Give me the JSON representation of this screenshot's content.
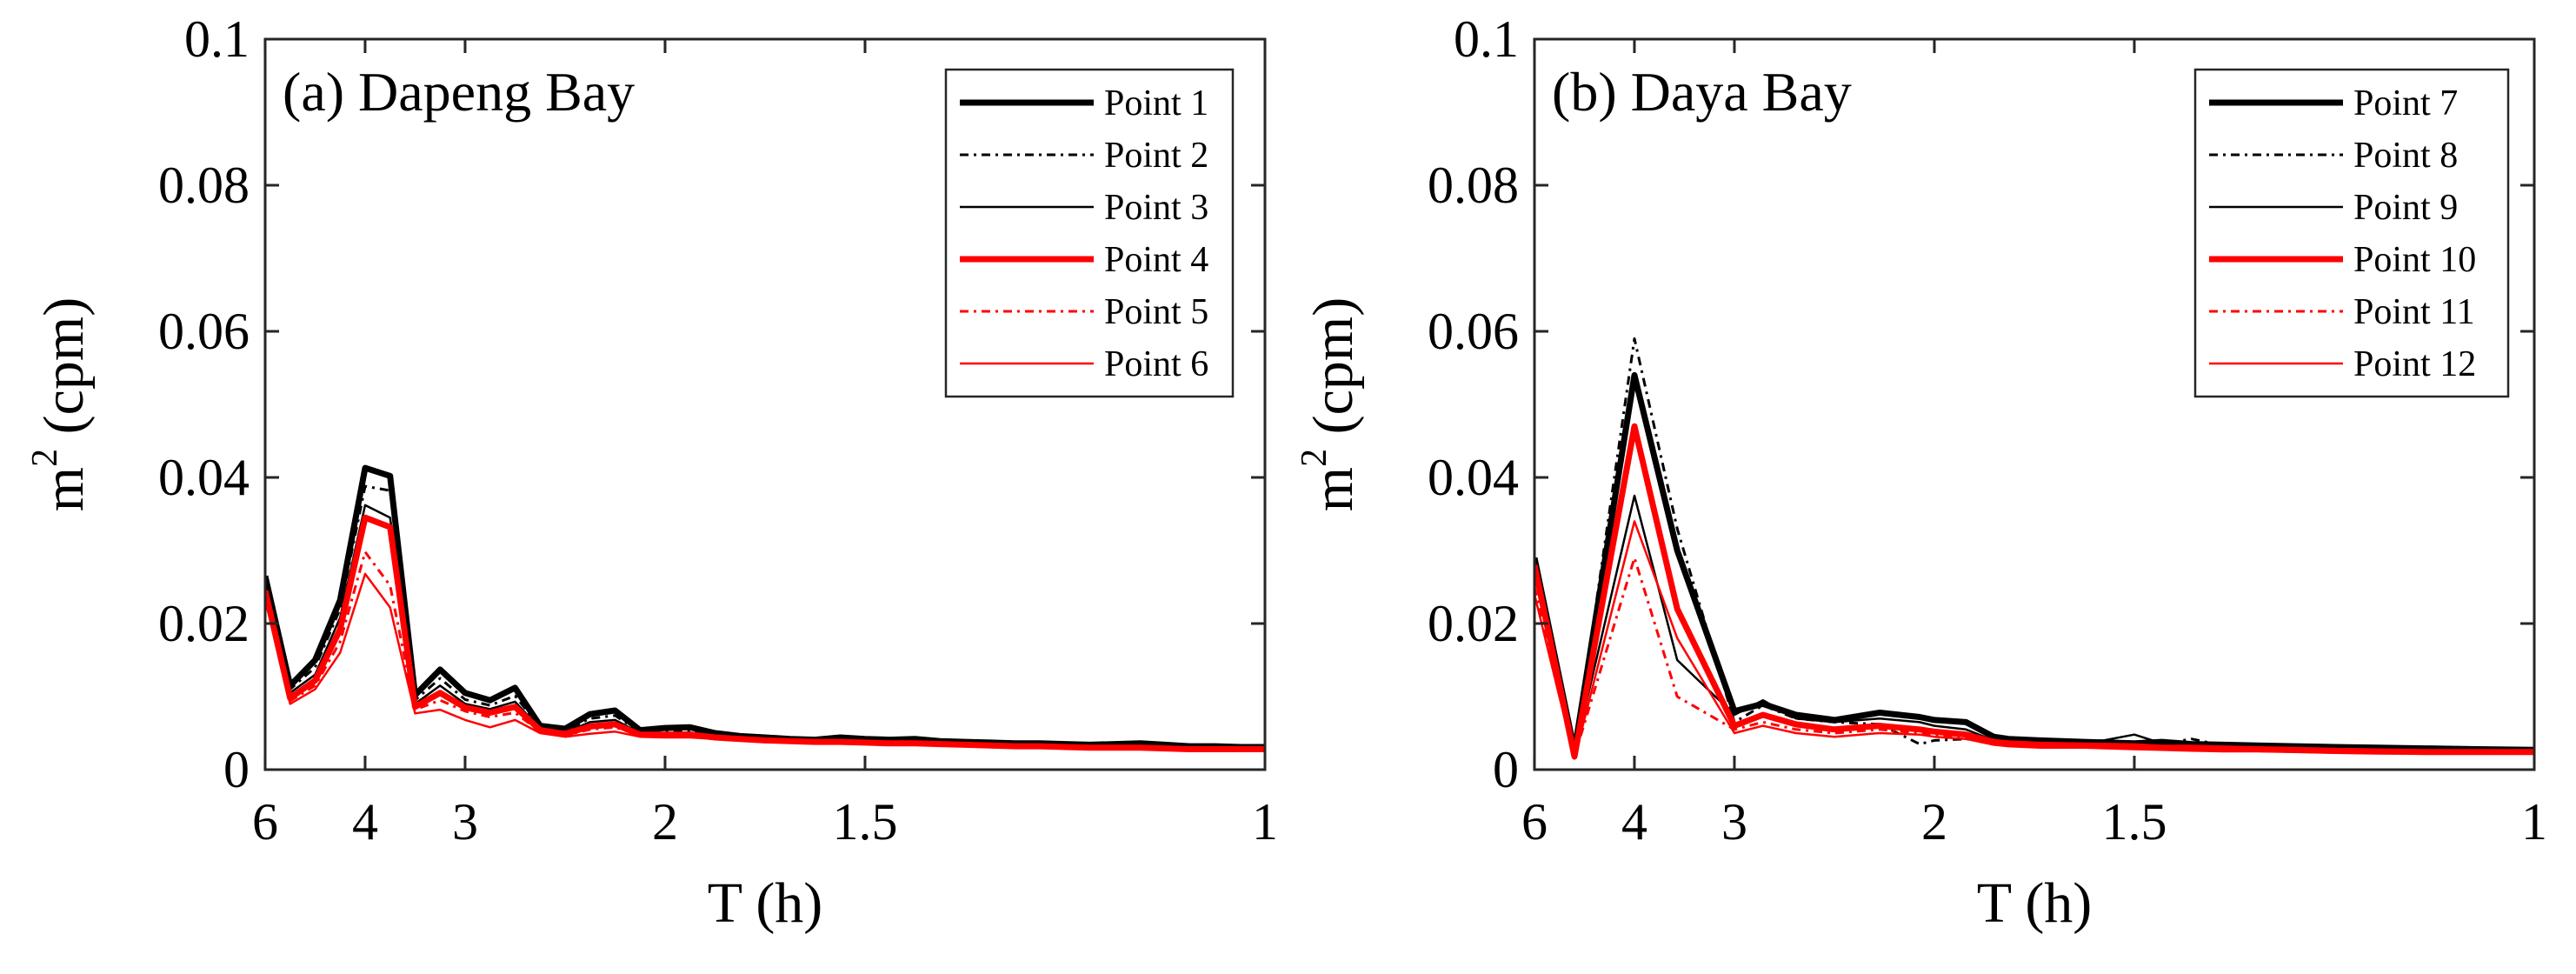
{
  "colors": {
    "black": "#000000",
    "red": "#ff0000",
    "frame": "#262626"
  },
  "chart_data": [
    {
      "type": "line",
      "title": "(a) Dapeng Bay",
      "xlabel": "T (h)",
      "ylabel_base": "m",
      "ylabel_sup": "2",
      "ylabel_unit": " (cpm)",
      "xlim_cph": [
        0.1667,
        1.0
      ],
      "ylim": [
        0,
        0.1
      ],
      "yticks": [
        0,
        0.02,
        0.04,
        0.06,
        0.08,
        0.1
      ],
      "ytick_labels": [
        "0",
        "0.02",
        "0.04",
        "0.06",
        "0.08",
        "0.1"
      ],
      "xticks_period_h": [
        6,
        4,
        3,
        2,
        1.5,
        1
      ],
      "xtick_labels": [
        "6",
        "4",
        "3",
        "2",
        "1.5",
        "1"
      ],
      "legend": "top-right",
      "x_period_h": [
        6,
        5.333,
        4.8,
        4.364,
        4.0,
        3.692,
        3.429,
        3.2,
        3.0,
        2.824,
        2.667,
        2.526,
        2.4,
        2.286,
        2.182,
        2.087,
        2.0,
        1.92,
        1.846,
        1.778,
        1.714,
        1.655,
        1.6,
        1.548,
        1.5,
        1.455,
        1.412,
        1.371,
        1.333,
        1.297,
        1.263,
        1.231,
        1.2,
        1.171,
        1.143,
        1.116,
        1.091,
        1.067,
        1.043,
        1.021,
        1.0
      ],
      "series": [
        {
          "name": "Point 1",
          "color": "#000000",
          "width": 7,
          "dash": "",
          "values": [
            0.0265,
            0.0115,
            0.015,
            0.0232,
            0.0413,
            0.0402,
            0.0102,
            0.0137,
            0.0105,
            0.0095,
            0.0112,
            0.006,
            0.0056,
            0.0076,
            0.0081,
            0.0054,
            0.0057,
            0.0058,
            0.005,
            0.0046,
            0.0044,
            0.0042,
            0.0041,
            0.0044,
            0.0042,
            0.0041,
            0.0042,
            0.0039,
            0.0038,
            0.0037,
            0.0036,
            0.0036,
            0.0035,
            0.0034,
            0.0035,
            0.0036,
            0.0034,
            0.0032,
            0.0032,
            0.0031,
            0.0031
          ]
        },
        {
          "name": "Point 2",
          "color": "#000000",
          "width": 3,
          "dash": "10,6,3,6",
          "values": [
            0.0258,
            0.011,
            0.014,
            0.022,
            0.0388,
            0.0382,
            0.0095,
            0.0125,
            0.0096,
            0.0088,
            0.0101,
            0.0058,
            0.0053,
            0.007,
            0.0074,
            0.0052,
            0.0053,
            0.0054,
            0.0048,
            0.0044,
            0.0042,
            0.0041,
            0.004,
            0.0041,
            0.004,
            0.0039,
            0.0039,
            0.0037,
            0.0036,
            0.0035,
            0.0034,
            0.0034,
            0.0033,
            0.0032,
            0.0032,
            0.0033,
            0.0031,
            0.003,
            0.003,
            0.0029,
            0.0029
          ]
        },
        {
          "name": "Point 3",
          "color": "#000000",
          "width": 2.5,
          "dash": "",
          "values": [
            0.025,
            0.0105,
            0.013,
            0.0208,
            0.0362,
            0.0345,
            0.009,
            0.0115,
            0.009,
            0.0083,
            0.0093,
            0.0056,
            0.0051,
            0.0065,
            0.0068,
            0.005,
            0.005,
            0.0051,
            0.0046,
            0.0043,
            0.0041,
            0.004,
            0.0039,
            0.004,
            0.0039,
            0.0038,
            0.0038,
            0.0036,
            0.0035,
            0.0034,
            0.0033,
            0.0033,
            0.0032,
            0.0031,
            0.0031,
            0.0032,
            0.003,
            0.0029,
            0.0029,
            0.0028,
            0.0028
          ]
        },
        {
          "name": "Point 4",
          "color": "#ff0000",
          "width": 7,
          "dash": "",
          "values": [
            0.0245,
            0.0098,
            0.0122,
            0.0192,
            0.0345,
            0.0332,
            0.0086,
            0.0105,
            0.0085,
            0.0078,
            0.0086,
            0.0054,
            0.0049,
            0.0059,
            0.0062,
            0.0048,
            0.0048,
            0.0048,
            0.0044,
            0.0042,
            0.004,
            0.0039,
            0.0038,
            0.0038,
            0.0037,
            0.0036,
            0.0036,
            0.0035,
            0.0034,
            0.0033,
            0.0032,
            0.0032,
            0.0031,
            0.003,
            0.003,
            0.003,
            0.0029,
            0.0028,
            0.0028,
            0.0028,
            0.0028
          ]
        },
        {
          "name": "Point 5",
          "color": "#ff0000",
          "width": 3,
          "dash": "10,6,3,6",
          "values": [
            0.024,
            0.0094,
            0.0115,
            0.0175,
            0.0298,
            0.0252,
            0.0082,
            0.0095,
            0.008,
            0.0072,
            0.0078,
            0.0052,
            0.0047,
            0.0055,
            0.0058,
            0.0047,
            0.0046,
            0.0046,
            0.0043,
            0.0041,
            0.0039,
            0.0038,
            0.0037,
            0.0037,
            0.0036,
            0.0035,
            0.0035,
            0.0034,
            0.0033,
            0.0032,
            0.0031,
            0.0031,
            0.003,
            0.0029,
            0.0029,
            0.0029,
            0.0028,
            0.0027,
            0.0027,
            0.0027,
            0.0027
          ]
        },
        {
          "name": "Point 6",
          "color": "#ff0000",
          "width": 2.5,
          "dash": "",
          "values": [
            0.0235,
            0.009,
            0.011,
            0.016,
            0.0268,
            0.0222,
            0.0077,
            0.0082,
            0.0068,
            0.0058,
            0.0068,
            0.005,
            0.0045,
            0.0049,
            0.0052,
            0.0045,
            0.0044,
            0.0044,
            0.0042,
            0.004,
            0.0038,
            0.0037,
            0.0036,
            0.0036,
            0.0035,
            0.0034,
            0.0034,
            0.0033,
            0.0032,
            0.0031,
            0.003,
            0.003,
            0.0029,
            0.0028,
            0.0028,
            0.0028,
            0.0027,
            0.0026,
            0.0026,
            0.0026,
            0.0026
          ]
        }
      ]
    },
    {
      "type": "line",
      "title": "(b) Daya Bay",
      "xlabel": "T (h)",
      "ylabel_base": "m",
      "ylabel_sup": "2",
      "ylabel_unit": " (cpm)",
      "xlim_cph": [
        0.1667,
        1.0
      ],
      "ylim": [
        0,
        0.1
      ],
      "yticks": [
        0,
        0.02,
        0.04,
        0.06,
        0.08,
        0.1
      ],
      "ytick_labels": [
        "0",
        "0.02",
        "0.04",
        "0.06",
        "0.08",
        "0.1"
      ],
      "xticks_period_h": [
        6,
        4,
        3,
        2,
        1.5,
        1
      ],
      "xtick_labels": [
        "6",
        "4",
        "3",
        "2",
        "1.5",
        "1"
      ],
      "legend": "top-right",
      "x_period_h": [
        6,
        5.0,
        4.0,
        3.5,
        3.0,
        2.8,
        2.6,
        2.4,
        2.2,
        2.05,
        2.0,
        1.9,
        1.82,
        1.78,
        1.7,
        1.6,
        1.5,
        1.45,
        1.4,
        1.35,
        1.3,
        1.25,
        1.2,
        1.15,
        1.1,
        1.05,
        1.0
      ],
      "series": [
        {
          "name": "Point 7",
          "color": "#000000",
          "width": 7,
          "dash": "",
          "values": [
            0.029,
            0.0025,
            0.054,
            0.03,
            0.008,
            0.009,
            0.0075,
            0.0068,
            0.0078,
            0.0072,
            0.0068,
            0.0065,
            0.0045,
            0.0042,
            0.004,
            0.0038,
            0.0036,
            0.0038,
            0.0035,
            0.0034,
            0.0033,
            0.0032,
            0.0031,
            0.003,
            0.0029,
            0.0028,
            0.0027
          ]
        },
        {
          "name": "Point 8",
          "color": "#000000",
          "width": 3,
          "dash": "10,6,3,6",
          "values": [
            0.028,
            0.0022,
            0.059,
            0.033,
            0.0065,
            0.0088,
            0.007,
            0.0065,
            0.0062,
            0.0035,
            0.004,
            0.0042,
            0.0038,
            0.0035,
            0.0034,
            0.0033,
            0.0032,
            0.0035,
            0.0042,
            0.0033,
            0.0032,
            0.0031,
            0.003,
            0.0029,
            0.0028,
            0.0027,
            0.0026
          ]
        },
        {
          "name": "Point 9",
          "color": "#000000",
          "width": 2.5,
          "dash": "",
          "values": [
            0.027,
            0.0022,
            0.0375,
            0.015,
            0.0075,
            0.0095,
            0.007,
            0.0065,
            0.007,
            0.0065,
            0.006,
            0.0055,
            0.004,
            0.0038,
            0.0036,
            0.0035,
            0.0048,
            0.0036,
            0.0034,
            0.0033,
            0.0032,
            0.0031,
            0.003,
            0.0029,
            0.0028,
            0.0027,
            0.0026
          ]
        },
        {
          "name": "Point 10",
          "color": "#ff0000",
          "width": 7,
          "dash": "",
          "values": [
            0.028,
            0.0018,
            0.047,
            0.022,
            0.006,
            0.0075,
            0.0062,
            0.0055,
            0.006,
            0.0055,
            0.0052,
            0.0048,
            0.0038,
            0.0036,
            0.0034,
            0.0033,
            0.0032,
            0.003,
            0.003,
            0.0029,
            0.0028,
            0.0027,
            0.0026,
            0.0025,
            0.0024,
            0.0024,
            0.0024
          ]
        },
        {
          "name": "Point 11",
          "color": "#ff0000",
          "width": 3,
          "dash": "10,6,3,6",
          "values": [
            0.025,
            0.0018,
            0.029,
            0.01,
            0.0055,
            0.0065,
            0.0055,
            0.005,
            0.0055,
            0.005,
            0.0048,
            0.0045,
            0.0036,
            0.0034,
            0.0032,
            0.0031,
            0.003,
            0.0029,
            0.0028,
            0.0027,
            0.0027,
            0.0026,
            0.0025,
            0.0024,
            0.0023,
            0.0023,
            0.0023
          ]
        },
        {
          "name": "Point 12",
          "color": "#ff0000",
          "width": 2.5,
          "dash": "",
          "values": [
            0.024,
            0.0015,
            0.034,
            0.018,
            0.005,
            0.006,
            0.005,
            0.0045,
            0.005,
            0.0048,
            0.0045,
            0.0042,
            0.0034,
            0.0032,
            0.003,
            0.003,
            0.0028,
            0.0027,
            0.0026,
            0.0025,
            0.0025,
            0.0024,
            0.0023,
            0.0022,
            0.0022,
            0.0022,
            0.0022
          ]
        }
      ]
    }
  ]
}
